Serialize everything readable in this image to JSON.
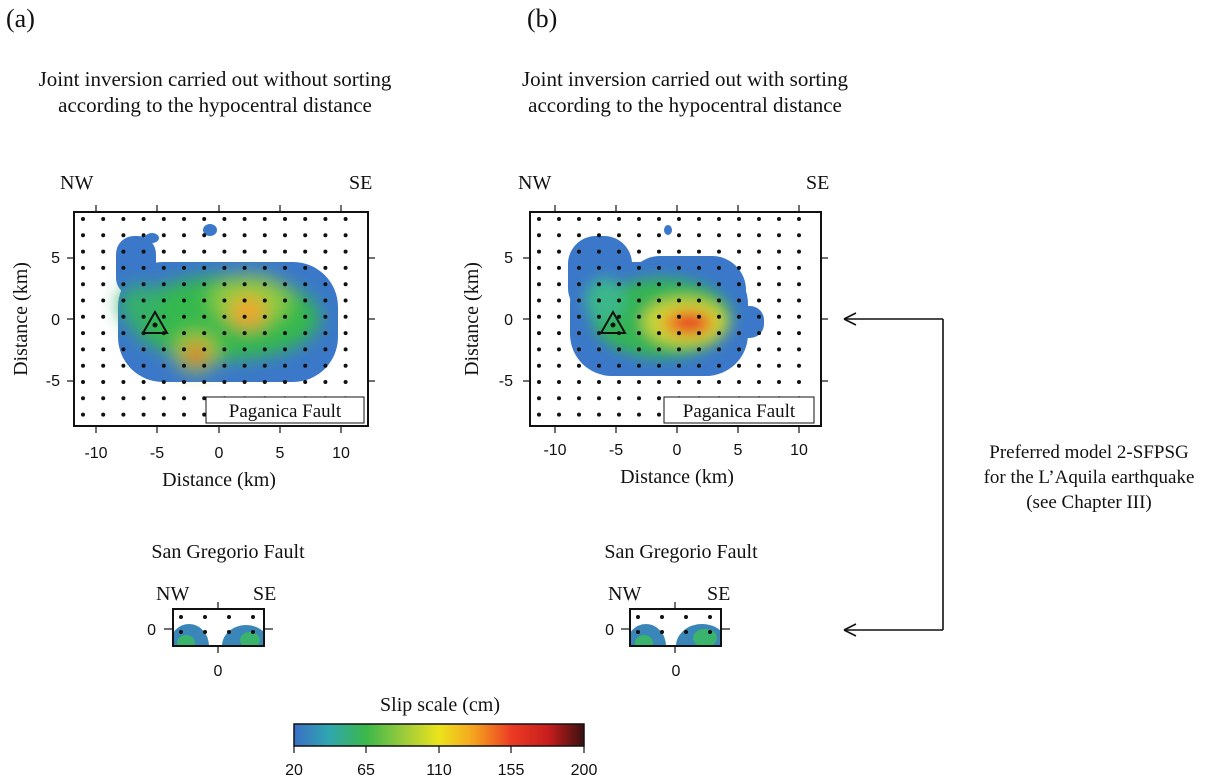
{
  "panels": [
    {
      "letter": "(a)",
      "title_line1": "Joint inversion carried out without sorting",
      "title_line2": "according to the hypocentral distance",
      "main_fault": {
        "dir_left": "NW",
        "dir_right": "SE",
        "ylabel": "Distance (km)",
        "xlabel": "Distance (km)",
        "x_ticks": [
          "-10",
          "-5",
          "0",
          "5",
          "10"
        ],
        "y_ticks": [
          "5",
          "0",
          "-5"
        ],
        "fault_label": "Paganica Fault"
      },
      "secondary_fault": {
        "title": "San Gregorio Fault",
        "dir_left": "NW",
        "dir_right": "SE",
        "y_tick": "0",
        "x_tick": "0"
      }
    },
    {
      "letter": "(b)",
      "title_line1": "Joint inversion carried out with sorting",
      "title_line2": "according to the hypocentral distance",
      "main_fault": {
        "dir_left": "NW",
        "dir_right": "SE",
        "ylabel": "Distance (km)",
        "xlabel": "Distance (km)",
        "x_ticks": [
          "-10",
          "-5",
          "0",
          "5",
          "10"
        ],
        "y_ticks": [
          "5",
          "0",
          "-5"
        ],
        "fault_label": "Paganica Fault"
      },
      "secondary_fault": {
        "title": "San Gregorio Fault",
        "dir_left": "NW",
        "dir_right": "SE",
        "y_tick": "0",
        "x_tick": "0"
      }
    }
  ],
  "annotation": {
    "line1": "Preferred model 2-SFPSG",
    "line2": "for the L’Aquila earthquake",
    "line3": "(see Chapter III)"
  },
  "colorbar": {
    "title": "Slip scale (cm)",
    "ticks": [
      "20",
      "65",
      "110",
      "155",
      "200"
    ],
    "colors": [
      "#3a6fc4",
      "#2fa6b0",
      "#3cb84a",
      "#9ccc3a",
      "#ece41c",
      "#f5a31e",
      "#ec3b24",
      "#c61d1d",
      "#3a1010"
    ]
  }
}
